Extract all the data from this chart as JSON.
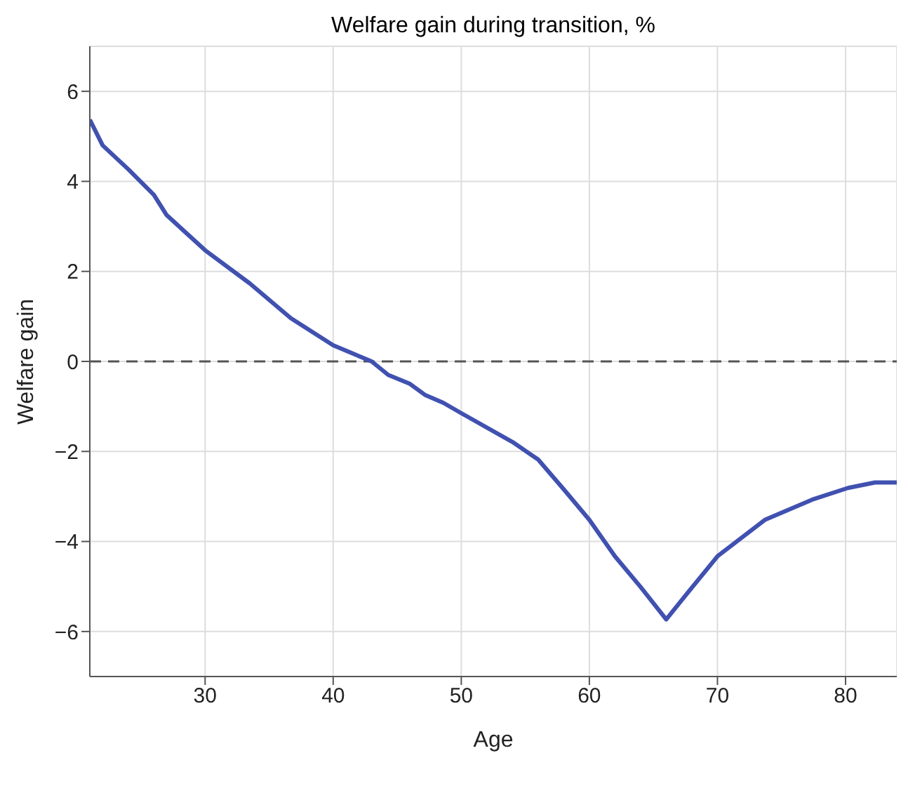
{
  "chart_data": {
    "type": "line",
    "title": "Welfare gain during transition, %",
    "xlabel": "Age",
    "ylabel": "Welfare gain",
    "x": [
      21,
      22,
      24,
      26,
      27,
      30,
      33.5,
      36.7,
      40,
      43,
      44.3,
      46,
      47.2,
      48.6,
      50,
      54,
      56,
      58,
      60,
      62,
      64,
      66,
      67.7,
      70,
      73.7,
      77.4,
      80.2,
      82.3,
      84
    ],
    "series": [
      {
        "color": "#4051b0",
        "values": [
          5.37,
          4.8,
          4.27,
          3.7,
          3.25,
          2.47,
          1.73,
          0.96,
          0.36,
          0,
          -0.3,
          -0.5,
          -0.75,
          -0.92,
          -1.15,
          -1.79,
          -2.18,
          -2.84,
          -3.52,
          -4.33,
          -5.01,
          -5.73,
          -5.13,
          -4.33,
          -3.52,
          -3.07,
          -2.81,
          -2.69,
          -2.69
        ]
      }
    ],
    "xlim": [
      21,
      84
    ],
    "xticks": [
      30,
      40,
      50,
      60,
      70,
      80
    ],
    "ylim": [
      -7,
      7
    ],
    "yticks": [
      -6,
      -4,
      -2,
      0,
      2,
      4,
      6
    ],
    "grid": true,
    "marker": "none",
    "line_style": "solid",
    "ref_lines": [
      {
        "axis": "y",
        "value": 0,
        "color": "#555555",
        "line_style": "dashed"
      }
    ]
  }
}
